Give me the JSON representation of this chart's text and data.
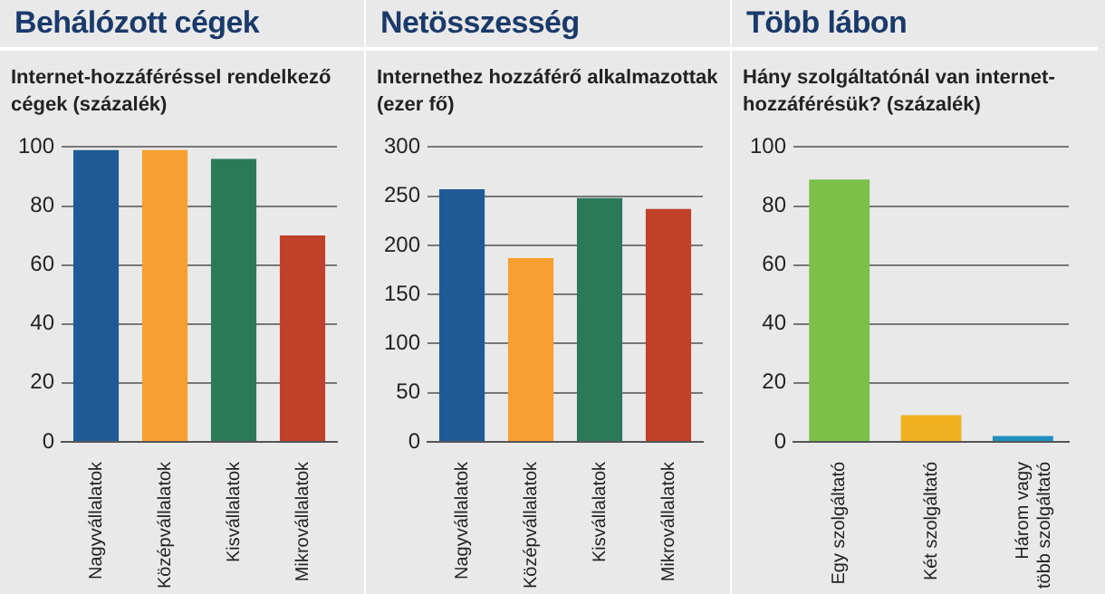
{
  "chart_data": [
    {
      "type": "bar",
      "title": "Behálózott cégek",
      "subtitle": "Internet-hozzáféréssel rendelkező cégek (százalék)",
      "categories": [
        "Nagyvállalatok",
        "Középvállalatok",
        "Kisvállalatok",
        "Mikrovállalatok"
      ],
      "values": [
        99,
        99,
        96,
        70
      ],
      "colors": [
        "#1f5a96",
        "#f5a030",
        "#2a7a5a",
        "#c0402a"
      ],
      "ylim": [
        0,
        100
      ],
      "yticks": [
        0,
        20,
        40,
        60,
        80,
        100
      ],
      "grid": "y",
      "legend": false
    },
    {
      "type": "bar",
      "title": "Netösszesség",
      "subtitle": "Internethez hozzáférő alkalmazottak (ezer fő)",
      "categories": [
        "Nagyvállalatok",
        "Középvállalatok",
        "Kisvállalatok",
        "Mikrovállalatok"
      ],
      "values": [
        257,
        187,
        248,
        237
      ],
      "colors": [
        "#1f5a96",
        "#f5a030",
        "#2a7a5a",
        "#c0402a"
      ],
      "ylim": [
        0,
        300
      ],
      "yticks": [
        0,
        50,
        100,
        150,
        200,
        250,
        300
      ],
      "grid": "y",
      "legend": false
    },
    {
      "type": "bar",
      "title": "Több lábon",
      "subtitle": "Hány szolgáltatónál van internet-hozzáférésük? (százalék)",
      "categories": [
        "Egy szolgáltató",
        "Két szolgáltató",
        "Három vagy több szolgáltató"
      ],
      "values": [
        89,
        9,
        2
      ],
      "colors": [
        "#7cc04a",
        "#f0b020",
        "#2090c0"
      ],
      "ylim": [
        0,
        100
      ],
      "yticks": [
        0,
        20,
        40,
        60,
        80,
        100
      ],
      "grid": "y",
      "legend": false
    }
  ]
}
